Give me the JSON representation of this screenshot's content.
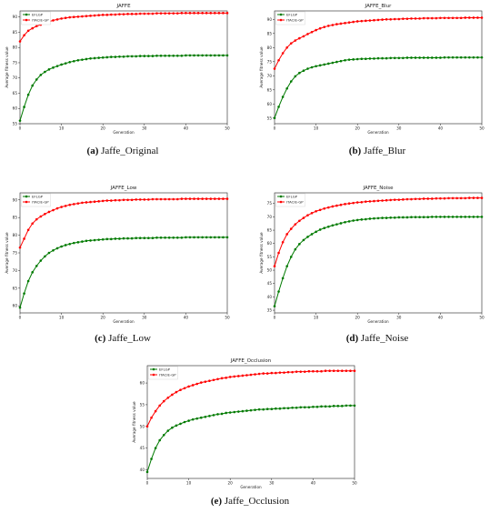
{
  "colors": {
    "series_a": "#007a00",
    "series_b": "#ff0000"
  },
  "panels": [
    {
      "caption_label": "(a)",
      "caption_name": "Jaffe_Original"
    },
    {
      "caption_label": "(b)",
      "caption_name": "Jaffe_Blur"
    },
    {
      "caption_label": "(c)",
      "caption_name": "Jaffe_Low"
    },
    {
      "caption_label": "(d)",
      "caption_name": "Jaffe_Noise"
    },
    {
      "caption_label": "(e)",
      "caption_name": "Jaffe_Occlusion"
    }
  ],
  "chart_data": [
    {
      "type": "line",
      "title": "JAFFE",
      "xlabel": "Generation",
      "ylabel": "Average fitness value",
      "xlim": [
        0,
        50
      ],
      "ylim": [
        55,
        92
      ],
      "legend": "top-left",
      "grid": false,
      "xticks": [
        0,
        10,
        20,
        30,
        40,
        50
      ],
      "yticks": [
        55,
        60,
        65,
        70,
        75,
        80,
        85,
        90
      ],
      "series": [
        {
          "name": "EFLGP",
          "values": [
            56.0,
            60.5,
            64.5,
            67.5,
            69.5,
            71.0,
            72.0,
            72.8,
            73.4,
            73.9,
            74.4,
            74.8,
            75.2,
            75.5,
            75.8,
            76.0,
            76.2,
            76.4,
            76.5,
            76.6,
            76.7,
            76.8,
            76.9,
            76.9,
            77.0,
            77.0,
            77.1,
            77.1,
            77.1,
            77.2,
            77.2,
            77.2,
            77.2,
            77.3,
            77.3,
            77.3,
            77.3,
            77.3,
            77.3,
            77.3,
            77.4,
            77.4,
            77.4,
            77.4,
            77.4,
            77.4,
            77.4,
            77.4,
            77.4,
            77.4,
            77.4
          ]
        },
        {
          "name": "ITACIE-GP",
          "values": [
            82.0,
            84.0,
            85.5,
            86.3,
            87.0,
            87.5,
            88.0,
            88.5,
            88.9,
            89.2,
            89.5,
            89.7,
            89.9,
            90.0,
            90.1,
            90.2,
            90.3,
            90.4,
            90.5,
            90.6,
            90.7,
            90.7,
            90.8,
            90.8,
            90.9,
            90.9,
            91.0,
            91.0,
            91.0,
            91.1,
            91.1,
            91.1,
            91.1,
            91.2,
            91.2,
            91.2,
            91.2,
            91.2,
            91.2,
            91.3,
            91.3,
            91.3,
            91.3,
            91.3,
            91.3,
            91.3,
            91.3,
            91.3,
            91.3,
            91.3,
            91.3
          ]
        }
      ]
    },
    {
      "type": "line",
      "title": "JAFFE_Blur",
      "xlabel": "Generation",
      "ylabel": "Average fitness value",
      "xlim": [
        0,
        50
      ],
      "ylim": [
        53,
        93
      ],
      "legend": "top-left",
      "grid": false,
      "xticks": [
        0,
        10,
        20,
        30,
        40,
        50
      ],
      "yticks": [
        55,
        60,
        65,
        70,
        75,
        80,
        85,
        90
      ],
      "series": [
        {
          "name": "EFLGP",
          "values": [
            55.0,
            59.0,
            62.5,
            65.5,
            68.0,
            69.8,
            71.0,
            71.8,
            72.5,
            73.0,
            73.4,
            73.7,
            74.0,
            74.3,
            74.6,
            74.9,
            75.2,
            75.5,
            75.7,
            75.8,
            75.9,
            76.0,
            76.0,
            76.1,
            76.1,
            76.2,
            76.2,
            76.2,
            76.3,
            76.3,
            76.3,
            76.3,
            76.4,
            76.4,
            76.4,
            76.4,
            76.4,
            76.4,
            76.4,
            76.4,
            76.4,
            76.5,
            76.5,
            76.5,
            76.5,
            76.5,
            76.5,
            76.5,
            76.5,
            76.5,
            76.5
          ]
        },
        {
          "name": "ITACIE-GP",
          "values": [
            72.5,
            75.5,
            78.0,
            80.0,
            81.5,
            82.5,
            83.3,
            84.0,
            84.8,
            85.5,
            86.2,
            86.8,
            87.3,
            87.7,
            88.0,
            88.3,
            88.5,
            88.7,
            88.9,
            89.1,
            89.3,
            89.4,
            89.5,
            89.6,
            89.7,
            89.8,
            89.9,
            90.0,
            90.0,
            90.1,
            90.1,
            90.2,
            90.2,
            90.3,
            90.3,
            90.3,
            90.4,
            90.4,
            90.4,
            90.4,
            90.5,
            90.5,
            90.5,
            90.5,
            90.5,
            90.5,
            90.6,
            90.6,
            90.6,
            90.6,
            90.6
          ]
        }
      ]
    },
    {
      "type": "line",
      "title": "JAFFE_Low",
      "xlabel": "Generation",
      "ylabel": "Average fitness value",
      "xlim": [
        0,
        50
      ],
      "ylim": [
        58,
        92
      ],
      "legend": "top-left",
      "grid": false,
      "xticks": [
        0,
        10,
        20,
        30,
        40,
        50
      ],
      "yticks": [
        60,
        65,
        70,
        75,
        80,
        85,
        90
      ],
      "series": [
        {
          "name": "EFLGP",
          "values": [
            59.5,
            63.5,
            67.0,
            69.5,
            71.3,
            72.8,
            74.0,
            75.0,
            75.7,
            76.3,
            76.8,
            77.2,
            77.5,
            77.8,
            78.0,
            78.2,
            78.4,
            78.5,
            78.6,
            78.7,
            78.8,
            78.9,
            78.9,
            79.0,
            79.0,
            79.1,
            79.1,
            79.1,
            79.2,
            79.2,
            79.2,
            79.2,
            79.2,
            79.3,
            79.3,
            79.3,
            79.3,
            79.3,
            79.3,
            79.3,
            79.4,
            79.4,
            79.4,
            79.4,
            79.4,
            79.4,
            79.4,
            79.4,
            79.4,
            79.4,
            79.4
          ]
        },
        {
          "name": "ITACIE-GP",
          "values": [
            76.5,
            79.0,
            81.5,
            83.3,
            84.5,
            85.3,
            86.0,
            86.6,
            87.1,
            87.6,
            88.0,
            88.3,
            88.6,
            88.8,
            89.0,
            89.2,
            89.3,
            89.4,
            89.5,
            89.6,
            89.7,
            89.8,
            89.8,
            89.9,
            89.9,
            90.0,
            90.0,
            90.0,
            90.1,
            90.1,
            90.1,
            90.1,
            90.2,
            90.2,
            90.2,
            90.2,
            90.2,
            90.2,
            90.2,
            90.3,
            90.3,
            90.3,
            90.3,
            90.3,
            90.3,
            90.3,
            90.3,
            90.3,
            90.3,
            90.3,
            90.3
          ]
        }
      ]
    },
    {
      "type": "line",
      "title": "JAFFE_Noise",
      "xlabel": "Generation",
      "ylabel": "Average fitness value",
      "xlim": [
        0,
        50
      ],
      "ylim": [
        34,
        79
      ],
      "legend": "top-left",
      "grid": false,
      "xticks": [
        0,
        10,
        20,
        30,
        40,
        50
      ],
      "yticks": [
        35,
        40,
        45,
        50,
        55,
        60,
        65,
        70,
        75
      ],
      "series": [
        {
          "name": "EFLGP",
          "values": [
            36.5,
            42.0,
            47.0,
            51.5,
            55.0,
            57.8,
            59.8,
            61.3,
            62.5,
            63.5,
            64.4,
            65.2,
            65.8,
            66.3,
            66.8,
            67.2,
            67.6,
            68.0,
            68.3,
            68.6,
            68.8,
            69.0,
            69.1,
            69.3,
            69.4,
            69.5,
            69.6,
            69.6,
            69.7,
            69.7,
            69.8,
            69.8,
            69.8,
            69.9,
            69.9,
            69.9,
            69.9,
            69.9,
            70.0,
            70.0,
            70.0,
            70.0,
            70.0,
            70.0,
            70.0,
            70.0,
            70.0,
            70.0,
            70.0,
            70.0,
            70.0
          ]
        },
        {
          "name": "ITACIE-GP",
          "values": [
            51.5,
            56.5,
            60.5,
            63.5,
            65.5,
            67.2,
            68.5,
            69.6,
            70.6,
            71.4,
            72.1,
            72.6,
            73.1,
            73.5,
            73.9,
            74.2,
            74.5,
            74.8,
            75.0,
            75.2,
            75.4,
            75.5,
            75.7,
            75.8,
            75.9,
            76.0,
            76.1,
            76.2,
            76.3,
            76.4,
            76.4,
            76.5,
            76.6,
            76.6,
            76.7,
            76.7,
            76.8,
            76.8,
            76.8,
            76.9,
            76.9,
            76.9,
            77.0,
            77.0,
            77.0,
            77.0,
            77.0,
            77.1,
            77.1,
            77.1,
            77.1
          ]
        }
      ]
    },
    {
      "type": "line",
      "title": "JAFFE_Occlusion",
      "xlabel": "Generation",
      "ylabel": "Average fitness value",
      "xlim": [
        0,
        50
      ],
      "ylim": [
        38,
        64
      ],
      "legend": "top-left",
      "grid": false,
      "xticks": [
        0,
        10,
        20,
        30,
        40,
        50
      ],
      "yticks": [
        40,
        45,
        50,
        55,
        60
      ],
      "series": [
        {
          "name": "EFLGP",
          "values": [
            39.5,
            42.5,
            45.0,
            46.8,
            48.0,
            49.0,
            49.7,
            50.2,
            50.6,
            51.0,
            51.3,
            51.6,
            51.8,
            52.0,
            52.2,
            52.4,
            52.6,
            52.8,
            52.9,
            53.1,
            53.2,
            53.3,
            53.4,
            53.5,
            53.6,
            53.7,
            53.8,
            53.9,
            53.9,
            54.0,
            54.0,
            54.1,
            54.1,
            54.2,
            54.2,
            54.3,
            54.3,
            54.4,
            54.4,
            54.4,
            54.5,
            54.5,
            54.6,
            54.6,
            54.6,
            54.7,
            54.7,
            54.7,
            54.8,
            54.8,
            54.8
          ]
        },
        {
          "name": "ITACIE-GP",
          "values": [
            50.0,
            52.0,
            53.5,
            54.8,
            55.8,
            56.6,
            57.3,
            57.9,
            58.4,
            58.8,
            59.2,
            59.5,
            59.8,
            60.1,
            60.3,
            60.5,
            60.7,
            60.9,
            61.1,
            61.2,
            61.4,
            61.5,
            61.6,
            61.7,
            61.8,
            61.9,
            62.0,
            62.1,
            62.2,
            62.2,
            62.3,
            62.3,
            62.4,
            62.4,
            62.5,
            62.5,
            62.6,
            62.6,
            62.6,
            62.7,
            62.7,
            62.7,
            62.7,
            62.8,
            62.8,
            62.8,
            62.8,
            62.8,
            62.8,
            62.8,
            62.8
          ]
        }
      ]
    }
  ]
}
